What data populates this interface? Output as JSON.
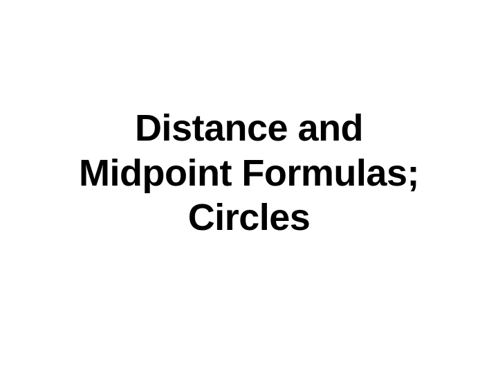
{
  "slide": {
    "title_line1": "Distance and",
    "title_line2": "Midpoint Formulas;",
    "title_line3": "Circles",
    "background_color": "#ffffff",
    "text_color": "#000000",
    "font_size": 54,
    "font_weight": "bold",
    "font_family": "Arial"
  }
}
